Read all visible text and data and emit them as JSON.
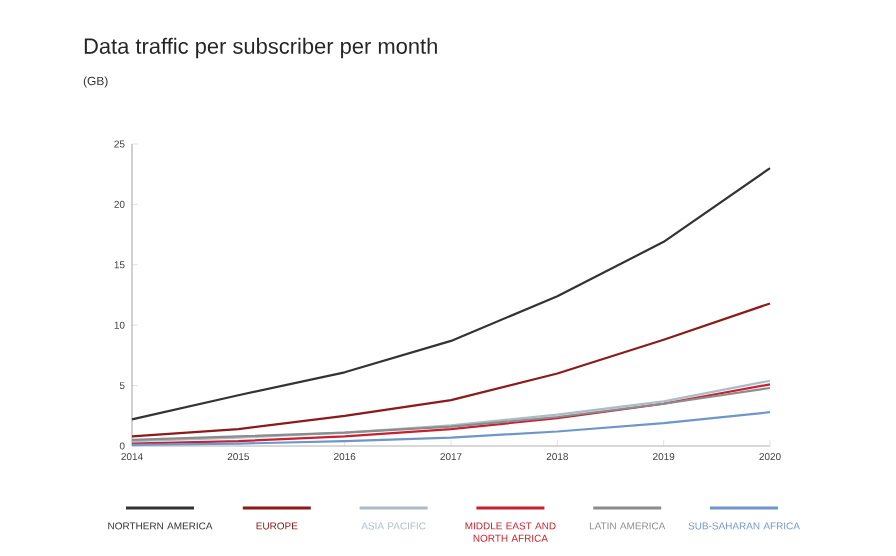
{
  "chart_data": {
    "type": "line",
    "title": "Data traffic per subscriber per month",
    "ylabel": "(GB)",
    "x": [
      2014,
      2015,
      2016,
      2017,
      2018,
      2019,
      2020
    ],
    "xlim": [
      2014,
      2020
    ],
    "xticks": [
      2014,
      2015,
      2016,
      2017,
      2018,
      2019,
      2020
    ],
    "ylim": [
      0,
      25
    ],
    "yticks": [
      0,
      5,
      10,
      15,
      20,
      25
    ],
    "grid": false,
    "legend": "bottom",
    "marker": "none",
    "line_style": "solid",
    "series": [
      {
        "name": "NORTHERN AMERICA",
        "color": "#333333",
        "values": [
          2.2,
          4.2,
          6.1,
          8.7,
          12.4,
          16.9,
          23.0
        ]
      },
      {
        "name": "EUROPE",
        "color": "#8b1a1a",
        "values": [
          0.8,
          1.4,
          2.5,
          3.8,
          6.0,
          8.8,
          11.8
        ]
      },
      {
        "name": "ASIA PACIFIC",
        "color": "#a9bcc8",
        "values": [
          0.4,
          0.7,
          1.1,
          1.7,
          2.6,
          3.7,
          5.4
        ]
      },
      {
        "name": "MIDDLE EAST AND NORTH AFRICA",
        "color": "#c8202f",
        "values": [
          0.2,
          0.4,
          0.8,
          1.4,
          2.3,
          3.5,
          5.1
        ]
      },
      {
        "name": "LATIN AMERICA",
        "color": "#8c8c8c",
        "values": [
          0.5,
          0.8,
          1.1,
          1.6,
          2.4,
          3.5,
          4.8
        ]
      },
      {
        "name": "SUB-SAHARAN AFRICA",
        "color": "#6f96c8",
        "values": [
          0.1,
          0.2,
          0.4,
          0.7,
          1.2,
          1.9,
          2.8
        ]
      }
    ]
  }
}
